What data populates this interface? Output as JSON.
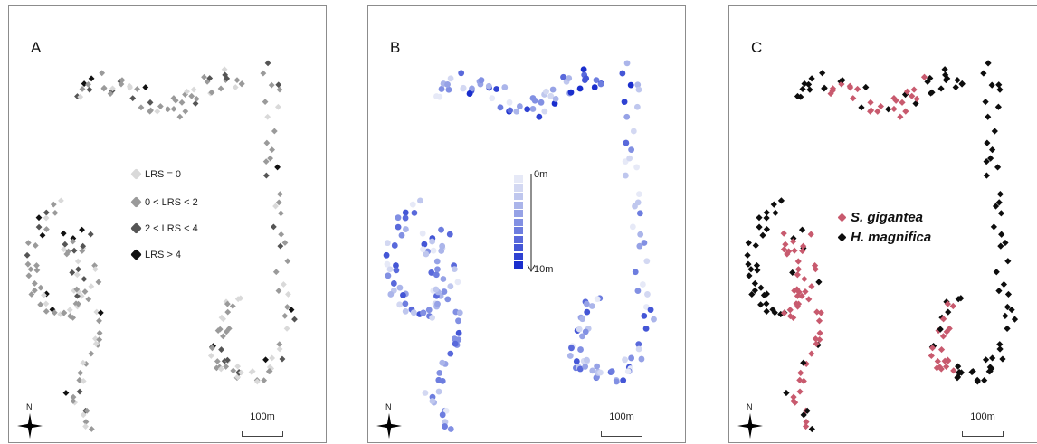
{
  "panels": {
    "a": {
      "letter": "A"
    },
    "b": {
      "letter": "B"
    },
    "c": {
      "letter": "C"
    }
  },
  "lrs_legend": [
    {
      "label": "LRS = 0",
      "color": "#d9d9d9"
    },
    {
      "label": "0 < LRS < 2",
      "color": "#9a9a9a"
    },
    {
      "label": "2 < LRS < 4",
      "color": "#555555"
    },
    {
      "label": "LRS > 4",
      "color": "#111111"
    }
  ],
  "depth_legend": {
    "top_label": "0m",
    "bottom_label": "10m",
    "colors": [
      "#e6e9f7",
      "#d3d8f2",
      "#bfc7ee",
      "#abb5ea",
      "#96a2e6",
      "#8290e3",
      "#6d7ddf",
      "#5969db",
      "#4456d6",
      "#2f42d2",
      "#1a2ecd"
    ]
  },
  "species_legend": [
    {
      "label": "S. gigantea",
      "color": "#c85a6e"
    },
    {
      "label": "H. magnifica",
      "color": "#0d0d0d"
    }
  ],
  "scale_label": "100m",
  "north_label": "N"
}
